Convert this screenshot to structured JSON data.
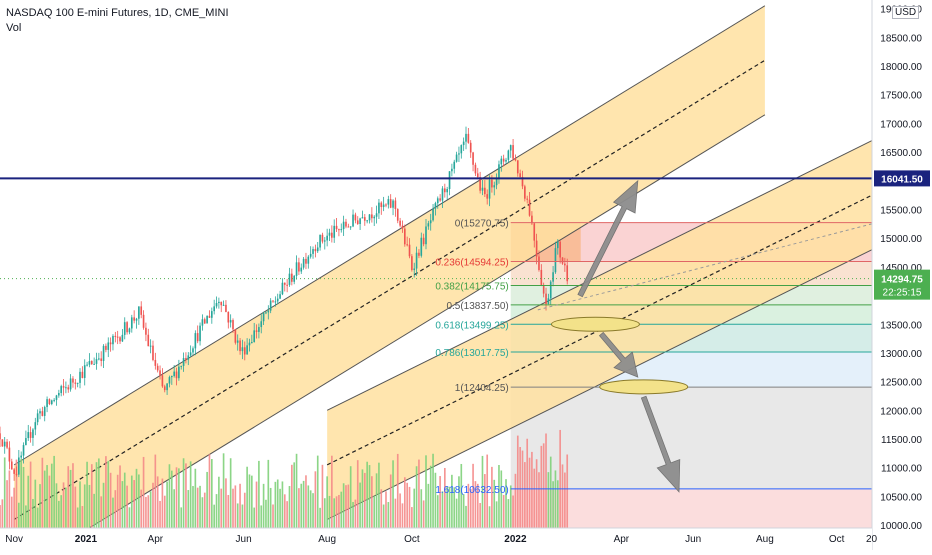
{
  "header": {
    "symbol": "NASDAQ 100 E-mini Futures, 1D, CME_MINI",
    "volume_label": "Vol",
    "currency": "USD"
  },
  "colors": {
    "up": "#26a69a",
    "down": "#ef5350",
    "vol_up": "#7fd07a",
    "vol_down": "#f48a88",
    "channel_fill": "#ffe0a0",
    "resistance_line": "#1a237e",
    "price_badge": "#4caf50"
  },
  "chart_data": {
    "type": "candlestick",
    "y_axis": {
      "ticks": [
        10000,
        10500,
        11000,
        11500,
        12000,
        12500,
        13000,
        13500,
        14000,
        14500,
        15000,
        15500,
        16000,
        16500,
        17000,
        17500,
        18000,
        18500,
        19000
      ],
      "tick_labels": [
        "10000.00",
        "10500.00",
        "11000.00",
        "11500.00",
        "12000.00",
        "12500.00",
        "13000.00",
        "13500.00",
        "14000.00",
        "14500.00",
        "15000.00",
        "15500.00",
        "16000.00",
        "16500.00",
        "17000.00",
        "17500.00",
        "18000.00",
        "18500.00",
        "19000.00"
      ],
      "range": [
        9950,
        19150
      ]
    },
    "x_axis": {
      "range": [
        "2020-10-20",
        "2022-10-31"
      ],
      "ticks": [
        {
          "date": "2020-11-01",
          "label": "Nov"
        },
        {
          "date": "2021-01-01",
          "label": "2021"
        },
        {
          "date": "2021-03-01",
          "label": "Apr"
        },
        {
          "date": "2021-05-15",
          "label": "Jun"
        },
        {
          "date": "2021-07-25",
          "label": "Aug"
        },
        {
          "date": "2021-10-05",
          "label": "Oct"
        },
        {
          "date": "2022-01-01",
          "label": "2022"
        },
        {
          "date": "2022-04-01",
          "label": "Apr"
        },
        {
          "date": "2022-06-01",
          "label": "Jun"
        },
        {
          "date": "2022-08-01",
          "label": "Aug"
        },
        {
          "date": "2022-10-01",
          "label": "Oct"
        }
      ],
      "cut_label": "20"
    },
    "price_path": [
      [
        "2020-10-20",
        11600
      ],
      [
        "2020-11-02",
        10900
      ],
      [
        "2020-11-20",
        11900
      ],
      [
        "2020-12-20",
        12500
      ],
      [
        "2021-01-20",
        13100
      ],
      [
        "2021-02-15",
        13700
      ],
      [
        "2021-03-08",
        12300
      ],
      [
        "2021-04-25",
        14000
      ],
      [
        "2021-05-13",
        13000
      ],
      [
        "2021-06-20",
        14200
      ],
      [
        "2021-07-15",
        14900
      ],
      [
        "2021-08-25",
        15400
      ],
      [
        "2021-09-20",
        15600
      ],
      [
        "2021-10-05",
        14500
      ],
      [
        "2021-10-25",
        15500
      ],
      [
        "2021-11-20",
        16700
      ],
      [
        "2021-12-05",
        15700
      ],
      [
        "2021-12-28",
        16600
      ],
      [
        "2022-01-12",
        15600
      ],
      [
        "2022-01-27",
        13800
      ],
      [
        "2022-02-05",
        14900
      ],
      [
        "2022-02-15",
        14300
      ]
    ],
    "channels": [
      {
        "name": "upper",
        "start": [
          "2020-11-01",
          11050
        ],
        "end": [
          "2022-08-01",
          19050
        ],
        "width": 1900
      },
      {
        "name": "lower",
        "start": [
          "2021-07-25",
          12000
        ],
        "end": [
          "2022-10-31",
          16700
        ],
        "width": 1900
      }
    ],
    "horizontal_line": {
      "price": 16041.5,
      "label": "16041.50"
    },
    "current_price": {
      "price": 14294.75,
      "label": "14294.75",
      "countdown": "22:25:15"
    },
    "fibonacci": {
      "start_date": "2021-12-28",
      "end_date": "2022-10-31",
      "levels": [
        {
          "ratio": 0,
          "price": 15270.75,
          "label": "0(15270.75)"
        },
        {
          "ratio": 0.236,
          "price": 14594.25,
          "label": "0.236(14594.25)"
        },
        {
          "ratio": 0.382,
          "price": 14175.75,
          "label": "0.382(14175.75)"
        },
        {
          "ratio": 0.5,
          "price": 13837.5,
          "label": "0.5(13837.50)"
        },
        {
          "ratio": 0.618,
          "price": 13499.25,
          "label": "0.618(13499.25)"
        },
        {
          "ratio": 0.786,
          "price": 13017.75,
          "label": "0.786(13017.75)"
        },
        {
          "ratio": 1,
          "price": 12404.25,
          "label": "1(12404.25)"
        },
        {
          "ratio": 1.618,
          "price": 10632.5,
          "label": "1.618(10632.50)"
        }
      ]
    },
    "ellipses": [
      {
        "date": "2022-03-10",
        "price": 13500
      },
      {
        "date": "2022-04-20",
        "price": 12410
      }
    ],
    "arrows": [
      {
        "from": [
          "2022-02-25",
          14000
        ],
        "to": [
          "2022-04-15",
          16000
        ]
      },
      {
        "from": [
          "2022-03-15",
          13330
        ],
        "to": [
          "2022-04-15",
          12580
        ]
      },
      {
        "from": [
          "2022-04-20",
          12230
        ],
        "to": [
          "2022-05-20",
          10580
        ]
      }
    ]
  }
}
